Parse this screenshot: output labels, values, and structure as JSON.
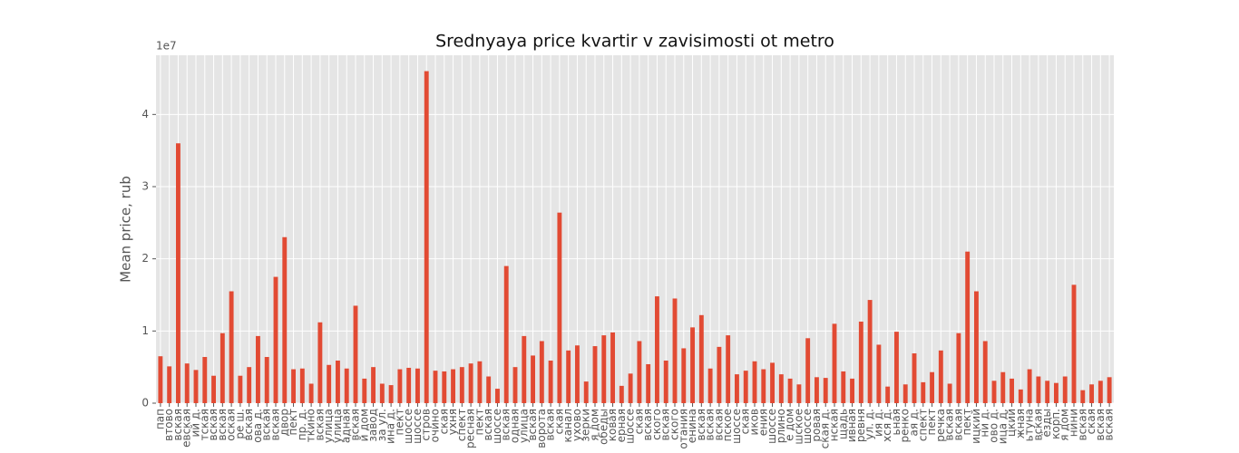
{
  "chart_data": {
    "type": "bar",
    "title": "Srednyaya price kvartir v zavisimosti ot metro",
    "y_label": "Mean price, rub",
    "y_offset_label": "1e7",
    "color": "#e24a33",
    "grid": true,
    "ylim": [
      0,
      4.82
    ],
    "yticks": [
      0,
      1,
      2,
      3,
      4
    ],
    "categories": [
      "пап",
      "втово",
      "вская",
      "евская",
      "ий д.",
      "тская",
      "вская",
      "вская",
      "оская",
      "ре ш.",
      "вская",
      "ова д.",
      "вская",
      "вская",
      "двор",
      "пект",
      "пр. д.",
      "ткино",
      "вская",
      "улица",
      "улица",
      "адная",
      "вская",
      "й дом",
      "завод",
      "за ул.",
      "ина д.",
      "пект",
      "шоссе",
      "шоссе",
      "стров",
      "очино",
      "ская",
      "ухня",
      "спект",
      "ресная",
      "пект",
      "вская",
      "шоссе",
      "вская",
      "одная",
      "улица",
      "вская",
      "ворота",
      "вская",
      "ская",
      "канал",
      "ухово",
      "зерки",
      "я дом",
      "обеды",
      "ковая",
      "ерная",
      "шоссе",
      "ская",
      "вская",
      "ского",
      "вская",
      "ского",
      "отания",
      "енина",
      "вская",
      "вская",
      "вская",
      "пское",
      "шоссе",
      "ская",
      "иков",
      "ения",
      "шоссе",
      "рлино",
      "е дом",
      "шское",
      "шоссе",
      "ровая",
      "ская д.",
      "нская",
      "щадь",
      "ивная",
      "ревня",
      "ул. д.",
      "ия д.",
      "хся д.",
      "ьная",
      "ренко",
      "ая д.",
      "спект",
      "пект",
      "речка",
      "вская",
      "вская",
      "пект",
      "ицкий",
      "ни д.",
      "ово д.",
      "ица д.",
      "цкий",
      "жная",
      "ьтуна",
      "вская",
      "ёзды",
      "корп.",
      "я дом",
      "нини",
      "вская",
      "ская",
      "вская",
      "вская"
    ],
    "values": [
      0.65,
      0.51,
      3.6,
      0.55,
      0.46,
      0.64,
      0.38,
      0.97,
      1.55,
      0.38,
      0.5,
      0.93,
      0.64,
      1.75,
      2.3,
      0.47,
      0.48,
      0.27,
      1.12,
      0.53,
      0.59,
      0.48,
      1.35,
      0.34,
      0.5,
      0.27,
      0.25,
      0.47,
      0.49,
      0.48,
      4.6,
      0.45,
      0.44,
      0.47,
      0.5,
      0.55,
      0.58,
      0.37,
      0.2,
      1.9,
      0.5,
      0.93,
      0.66,
      0.86,
      0.59,
      2.64,
      0.73,
      0.8,
      0.3,
      0.79,
      0.94,
      0.98,
      0.24,
      0.41,
      0.86,
      0.54,
      1.48,
      0.59,
      1.45,
      0.76,
      1.05,
      1.22,
      0.48,
      0.78,
      0.94,
      0.4,
      0.45,
      0.58,
      0.47,
      0.56,
      0.4,
      0.34,
      0.26,
      0.9,
      0.36,
      0.35,
      1.1,
      0.44,
      0.34,
      1.13,
      1.43,
      0.81,
      0.23,
      0.99,
      0.26,
      0.69,
      0.29,
      0.43,
      0.73,
      0.27,
      0.97,
      2.1,
      1.55,
      0.86,
      0.31,
      0.43,
      0.34,
      0.19,
      0.47,
      0.37,
      0.31,
      0.28,
      0.37,
      1.64,
      0.18,
      0.26,
      0.31,
      0.36
    ]
  }
}
